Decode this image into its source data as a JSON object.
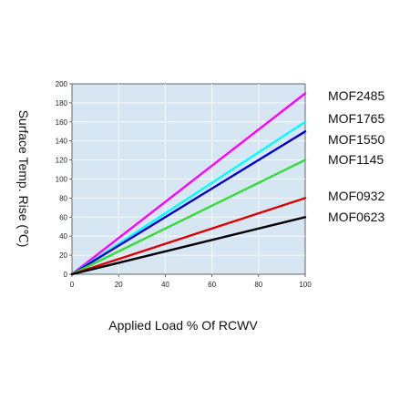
{
  "chart_data": {
    "type": "line",
    "xlabel": "Applied Load % Of RCWV",
    "ylabel": "Surface Temp. Rise (℃)",
    "xlim": [
      0,
      100
    ],
    "ylim": [
      0,
      200
    ],
    "x_ticks": [
      "0",
      "20",
      "40",
      "60",
      "80",
      "100"
    ],
    "y_ticks": [
      "0",
      "20",
      "40",
      "60",
      "80",
      "100",
      "120",
      "140",
      "160",
      "180",
      "200"
    ],
    "grid": true,
    "legend_position": "right",
    "plot_background": "#d6e6f2",
    "grid_color": "#ffffff",
    "series": [
      {
        "name": "MOF2485",
        "color": "#ff00ff",
        "x": [
          0,
          100
        ],
        "y": [
          0,
          190
        ]
      },
      {
        "name": "MOF1765",
        "color": "#00ffff",
        "x": [
          0,
          100
        ],
        "y": [
          0,
          160
        ]
      },
      {
        "name": "MOF1550",
        "color": "#0000cc",
        "x": [
          0,
          100
        ],
        "y": [
          0,
          150
        ]
      },
      {
        "name": "MOF1145",
        "color": "#33dd33",
        "x": [
          0,
          100
        ],
        "y": [
          0,
          120
        ]
      },
      {
        "name": "MOF0932",
        "color": "#dd0000",
        "x": [
          0,
          100
        ],
        "y": [
          0,
          80
        ]
      },
      {
        "name": "MOF0623",
        "color": "#000000",
        "x": [
          0,
          100
        ],
        "y": [
          0,
          60
        ]
      }
    ]
  }
}
